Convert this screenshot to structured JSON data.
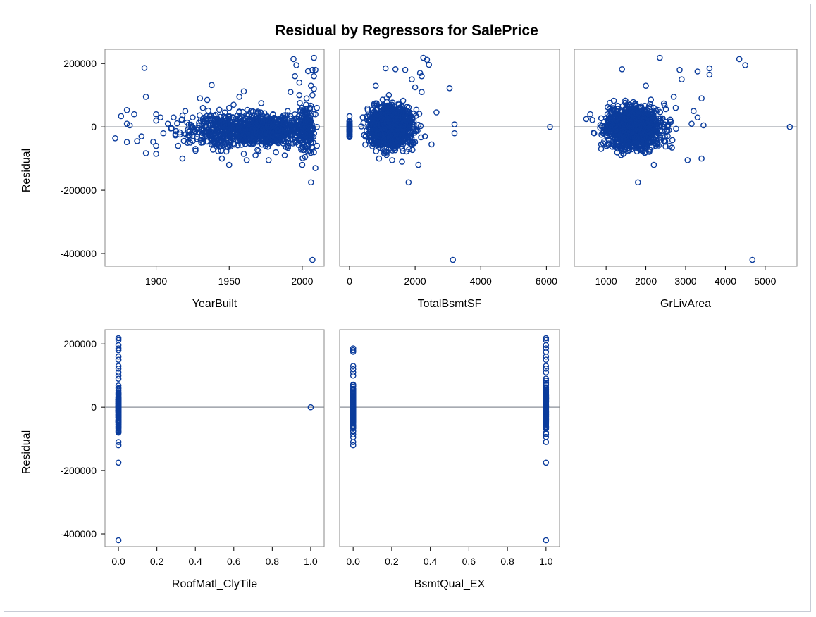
{
  "chart_data": {
    "type": "scatter",
    "title": "Residual by Regressors for SalePrice",
    "ylabel": "Residual",
    "ylim": [
      -440000,
      245000
    ],
    "yticks": [
      200000,
      0,
      -200000,
      -400000
    ],
    "ytick_labels": [
      "200000",
      "0",
      "-200000",
      "-400000"
    ],
    "reference_line_y": 0,
    "colors": {
      "marker": "#0b3c9c",
      "reference": "#8a8f99",
      "frame": "#888888"
    },
    "panels": [
      {
        "xlabel": "YearBuilt",
        "xlim": [
          1865,
          2015
        ],
        "xticks": [
          1900,
          1950,
          2000
        ],
        "xtick_labels": [
          "1900",
          "1950",
          "2000"
        ],
        "x_type": "continuous",
        "points": [
          [
            1872,
            -36000
          ],
          [
            1876,
            34000
          ],
          [
            1880,
            53000
          ],
          [
            1880,
            10000
          ],
          [
            1882,
            5000
          ],
          [
            1885,
            40000
          ],
          [
            1880,
            -48000
          ],
          [
            1887,
            -45000
          ],
          [
            1890,
            -30000
          ],
          [
            1892,
            186000
          ],
          [
            1893,
            95000
          ],
          [
            1893,
            -83000
          ],
          [
            1898,
            -47000
          ],
          [
            1900,
            40000
          ],
          [
            1900,
            20000
          ],
          [
            1900,
            -60000
          ],
          [
            1900,
            -85000
          ],
          [
            1903,
            30000
          ],
          [
            1905,
            -20000
          ],
          [
            1908,
            10000
          ],
          [
            1910,
            -5000
          ],
          [
            1912,
            30000
          ],
          [
            1915,
            -60000
          ],
          [
            1918,
            -100000
          ],
          [
            1920,
            50000
          ],
          [
            1922,
            -15000
          ],
          [
            1925,
            30000
          ],
          [
            1927,
            -75000
          ],
          [
            1930,
            90000
          ],
          [
            1932,
            60000
          ],
          [
            1935,
            85000
          ],
          [
            1935,
            -30000
          ],
          [
            1938,
            132000
          ],
          [
            1940,
            10000
          ],
          [
            1942,
            -55000
          ],
          [
            1945,
            -100000
          ],
          [
            1948,
            20000
          ],
          [
            1950,
            -120000
          ],
          [
            1950,
            60000
          ],
          [
            1953,
            70000
          ],
          [
            1955,
            -30000
          ],
          [
            1957,
            95000
          ],
          [
            1960,
            112000
          ],
          [
            1960,
            -85000
          ],
          [
            1962,
            -105000
          ],
          [
            1965,
            50000
          ],
          [
            1968,
            -90000
          ],
          [
            1970,
            20000
          ],
          [
            1972,
            75000
          ],
          [
            1975,
            -60000
          ],
          [
            1977,
            -105000
          ],
          [
            1980,
            40000
          ],
          [
            1982,
            -80000
          ],
          [
            1985,
            10000
          ],
          [
            1988,
            -90000
          ],
          [
            1990,
            50000
          ],
          [
            1992,
            110000
          ],
          [
            1994,
            214000
          ],
          [
            1995,
            160000
          ],
          [
            1996,
            195000
          ],
          [
            1998,
            140000
          ],
          [
            1998,
            100000
          ],
          [
            2000,
            60000
          ],
          [
            2000,
            -120000
          ],
          [
            2002,
            -95000
          ],
          [
            2003,
            90000
          ],
          [
            2004,
            176000
          ],
          [
            2005,
            20000
          ],
          [
            2006,
            -40000
          ],
          [
            2006,
            130000
          ],
          [
            2006,
            -175000
          ],
          [
            2007,
            180000
          ],
          [
            2007,
            100000
          ],
          [
            2007,
            -420000
          ],
          [
            2008,
            218000
          ],
          [
            2008,
            160000
          ],
          [
            2008,
            120000
          ],
          [
            2008,
            -80000
          ],
          [
            2009,
            40000
          ],
          [
            2009,
            -130000
          ],
          [
            2009,
            180000
          ],
          [
            2010,
            0
          ],
          [
            2010,
            60000
          ],
          [
            2010,
            -60000
          ]
        ],
        "clouds": [
          {
            "x": [
              1905,
              2010
            ],
            "y": [
              -80000,
              60000
            ],
            "n": 620
          },
          {
            "x": [
              1950,
              2010
            ],
            "y": [
              -60000,
              40000
            ],
            "n": 380
          },
          {
            "x": [
              1995,
              2010
            ],
            "y": [
              -100000,
              90000
            ],
            "n": 180
          }
        ]
      },
      {
        "xlabel": "TotalBsmtSF",
        "xlim": [
          -300,
          6400
        ],
        "xticks": [
          0,
          2000,
          4000,
          6000
        ],
        "xtick_labels": [
          "0",
          "2000",
          "4000",
          "6000"
        ],
        "x_type": "continuous",
        "points": [
          [
            2250,
            218000
          ],
          [
            2360,
            212000
          ],
          [
            2420,
            196000
          ],
          [
            1100,
            185000
          ],
          [
            1400,
            182000
          ],
          [
            1700,
            180000
          ],
          [
            2150,
            170000
          ],
          [
            2200,
            160000
          ],
          [
            1900,
            150000
          ],
          [
            3050,
            122000
          ],
          [
            2000,
            125000
          ],
          [
            2200,
            110000
          ],
          [
            2650,
            46000
          ],
          [
            3200,
            8000
          ],
          [
            3200,
            -20000
          ],
          [
            6110,
            0
          ],
          [
            2500,
            -55000
          ],
          [
            3150,
            -420000
          ],
          [
            1800,
            -175000
          ],
          [
            2100,
            -120000
          ],
          [
            2300,
            -30000
          ],
          [
            800,
            130000
          ],
          [
            1200,
            100000
          ],
          [
            900,
            -100000
          ],
          [
            1300,
            -105000
          ],
          [
            1600,
            -110000
          ]
        ],
        "clouds": [
          {
            "x": [
              0,
              0
            ],
            "y": [
              -50000,
              40000
            ],
            "n": 60
          },
          {
            "x": [
              300,
              2300
            ],
            "y": [
              -90000,
              90000
            ],
            "n": 900
          },
          {
            "x": [
              600,
              1800
            ],
            "y": [
              -60000,
              60000
            ],
            "n": 500
          }
        ]
      },
      {
        "xlabel": "GrLivArea",
        "xlim": [
          200,
          5800
        ],
        "xticks": [
          1000,
          2000,
          3000,
          4000,
          5000
        ],
        "xtick_labels": [
          "1000",
          "2000",
          "3000",
          "4000",
          "5000"
        ],
        "x_type": "continuous",
        "points": [
          [
            4350,
            214000
          ],
          [
            4500,
            195000
          ],
          [
            2350,
            218000
          ],
          [
            1400,
            182000
          ],
          [
            3600,
            185000
          ],
          [
            3600,
            165000
          ],
          [
            3300,
            175000
          ],
          [
            2850,
            180000
          ],
          [
            2900,
            150000
          ],
          [
            2000,
            130000
          ],
          [
            2700,
            95000
          ],
          [
            3400,
            90000
          ],
          [
            3200,
            50000
          ],
          [
            3300,
            30000
          ],
          [
            3150,
            10000
          ],
          [
            3450,
            5000
          ],
          [
            3050,
            -105000
          ],
          [
            3400,
            -100000
          ],
          [
            5620,
            0
          ],
          [
            4680,
            -420000
          ],
          [
            1800,
            -175000
          ],
          [
            2200,
            -120000
          ],
          [
            500,
            25000
          ],
          [
            600,
            40000
          ],
          [
            700,
            -20000
          ],
          [
            2600,
            -60000
          ],
          [
            2750,
            60000
          ]
        ],
        "clouds": [
          {
            "x": [
              600,
              2800
            ],
            "y": [
              -90000,
              90000
            ],
            "n": 1000
          },
          {
            "x": [
              1000,
              2200
            ],
            "y": [
              -60000,
              60000
            ],
            "n": 450
          }
        ]
      },
      {
        "xlabel": "RoofMatl_ClyTile",
        "xlim": [
          -0.07,
          1.07
        ],
        "xticks": [
          0.0,
          0.2,
          0.4,
          0.6,
          0.8,
          1.0
        ],
        "xtick_labels": [
          "0.0",
          "0.2",
          "0.4",
          "0.6",
          "0.8",
          "1.0"
        ],
        "x_type": "binary",
        "points": [
          [
            0,
            218000
          ],
          [
            0,
            212000
          ],
          [
            0,
            196000
          ],
          [
            0,
            186000
          ],
          [
            0,
            180000
          ],
          [
            0,
            160000
          ],
          [
            0,
            150000
          ],
          [
            0,
            130000
          ],
          [
            0,
            122000
          ],
          [
            0,
            110000
          ],
          [
            0,
            100000
          ],
          [
            0,
            90000
          ],
          [
            0,
            -110000
          ],
          [
            0,
            -120000
          ],
          [
            0,
            -175000
          ],
          [
            0,
            -420000
          ],
          [
            1,
            0
          ]
        ],
        "clouds": [
          {
            "x": [
              0,
              0
            ],
            "y": [
              -105000,
              85000
            ],
            "n": 140
          }
        ]
      },
      {
        "xlabel": "BsmtQual_EX",
        "xlim": [
          -0.07,
          1.07
        ],
        "xticks": [
          0.0,
          0.2,
          0.4,
          0.6,
          0.8,
          1.0
        ],
        "xtick_labels": [
          "0.0",
          "0.2",
          "0.4",
          "0.6",
          "0.8",
          "1.0"
        ],
        "x_type": "binary",
        "points": [
          [
            0,
            186000
          ],
          [
            0,
            180000
          ],
          [
            0,
            175000
          ],
          [
            0,
            130000
          ],
          [
            0,
            120000
          ],
          [
            0,
            110000
          ],
          [
            0,
            100000
          ],
          [
            0,
            -110000
          ],
          [
            0,
            -120000
          ],
          [
            1,
            218000
          ],
          [
            1,
            212000
          ],
          [
            1,
            196000
          ],
          [
            1,
            186000
          ],
          [
            1,
            175000
          ],
          [
            1,
            160000
          ],
          [
            1,
            150000
          ],
          [
            1,
            130000
          ],
          [
            1,
            122000
          ],
          [
            1,
            110000
          ],
          [
            1,
            -110000
          ],
          [
            1,
            -175000
          ],
          [
            1,
            -420000
          ]
        ],
        "clouds": [
          {
            "x": [
              0,
              0
            ],
            "y": [
              -100000,
              95000
            ],
            "n": 140
          },
          {
            "x": [
              1,
              1
            ],
            "y": [
              -100000,
              100000
            ],
            "n": 140
          }
        ]
      }
    ]
  }
}
